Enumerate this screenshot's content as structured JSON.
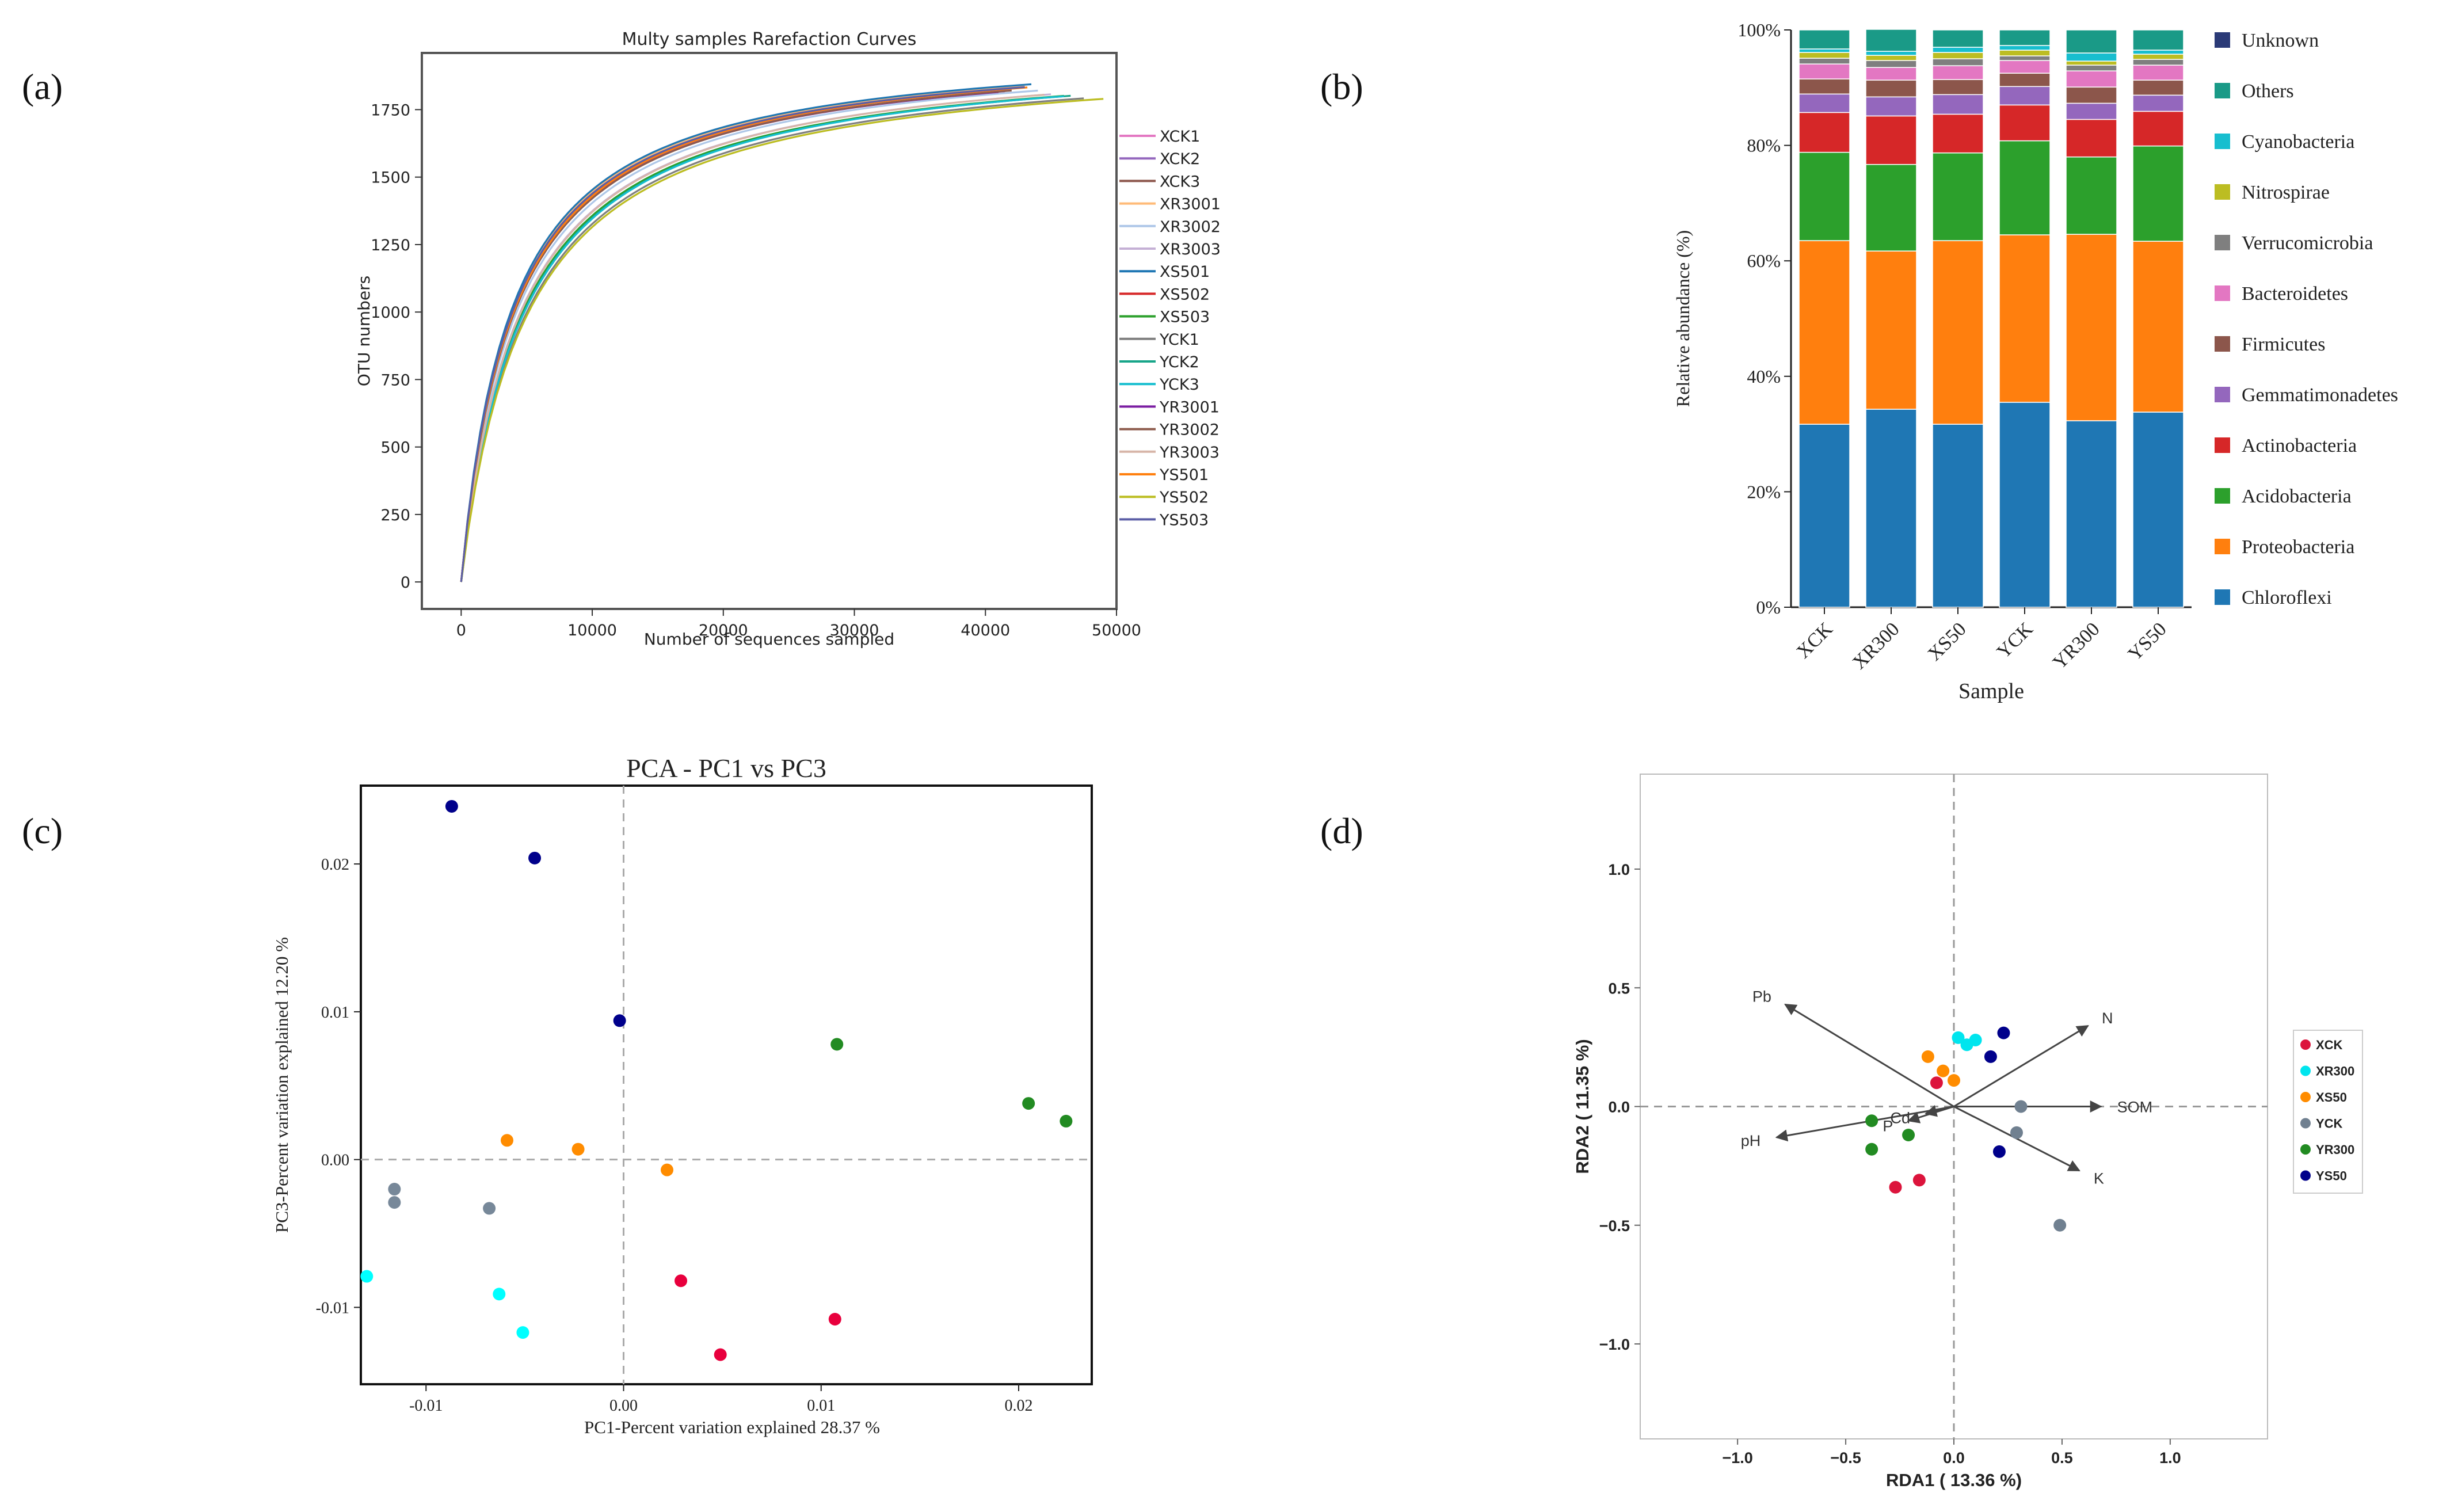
{
  "panel_labels": [
    "(a)",
    "(b)",
    "(c)",
    "(d)"
  ],
  "chart_data": [
    {
      "panel": "a",
      "type": "line",
      "title": "Multy samples Rarefaction Curves",
      "xlabel": "Number of sequences sampled",
      "ylabel": "OTU numbers",
      "xlim": [
        -3000,
        50000
      ],
      "ylim": [
        -100,
        1960
      ],
      "xticks": [
        0,
        10000,
        20000,
        30000,
        40000,
        50000
      ],
      "yticks": [
        0,
        250,
        500,
        750,
        1000,
        1250,
        1500,
        1750
      ],
      "grid": false,
      "legend": "right",
      "series": [
        {
          "name": "XCK1",
          "color": "#e377c2",
          "max_x": 42000,
          "plateau": 1840,
          "halfsat": 3900
        },
        {
          "name": "XCK2",
          "color": "#9467bd",
          "max_x": 41500,
          "plateau": 1835,
          "halfsat": 3950
        },
        {
          "name": "XCK3",
          "color": "#8c564b",
          "max_x": 42500,
          "plateau": 1842,
          "halfsat": 3880
        },
        {
          "name": "XR3001",
          "color": "#ffbb78",
          "max_x": 43000,
          "plateau": 1846,
          "halfsat": 3850
        },
        {
          "name": "XR3002",
          "color": "#aec7e8",
          "max_x": 44000,
          "plateau": 1838,
          "halfsat": 4200
        },
        {
          "name": "XR3003",
          "color": "#c5b0d5",
          "max_x": 45000,
          "plateau": 1830,
          "halfsat": 4450
        },
        {
          "name": "XS501",
          "color": "#1f77b4",
          "max_x": 43500,
          "plateau": 1848,
          "halfsat": 3800
        },
        {
          "name": "XS502",
          "color": "#d62728",
          "max_x": 42000,
          "plateau": 1844,
          "halfsat": 3950
        },
        {
          "name": "XS503",
          "color": "#2ca02c",
          "max_x": 46000,
          "plateau": 1826,
          "halfsat": 4600
        },
        {
          "name": "YCK1",
          "color": "#7f7f7f",
          "max_x": 47500,
          "plateau": 1822,
          "halfsat": 4900
        },
        {
          "name": "YCK2",
          "color": "#17a589",
          "max_x": 46500,
          "plateau": 1828,
          "halfsat": 4700
        },
        {
          "name": "YCK3",
          "color": "#17becf",
          "max_x": 46000,
          "plateau": 1830,
          "halfsat": 4750
        },
        {
          "name": "YR3001",
          "color": "#7b1fa2",
          "max_x": 41000,
          "plateau": 1836,
          "halfsat": 4000
        },
        {
          "name": "YR3002",
          "color": "#8d5b4c",
          "max_x": 42000,
          "plateau": 1840,
          "halfsat": 4050
        },
        {
          "name": "YR3003",
          "color": "#d7b5a8",
          "max_x": 44500,
          "plateau": 1832,
          "halfsat": 4500
        },
        {
          "name": "YS501",
          "color": "#ff7f0e",
          "max_x": 43200,
          "plateau": 1845,
          "halfsat": 4000
        },
        {
          "name": "YS502",
          "color": "#bcbd22",
          "max_x": 49000,
          "plateau": 1818,
          "halfsat": 5000
        },
        {
          "name": "YS503",
          "color": "#5b5ea6",
          "max_x": 43000,
          "plateau": 1843,
          "halfsat": 3900
        }
      ]
    },
    {
      "panel": "b",
      "type": "bar",
      "stacked": true,
      "title": "",
      "xlabel": "Sample",
      "ylabel": "Relative abundance (%)",
      "ylim": [
        0,
        100
      ],
      "yticks": [
        "0%",
        "20%",
        "40%",
        "60%",
        "80%",
        "100%"
      ],
      "categories": [
        "XCK",
        "XR300",
        "XS50",
        "YCK",
        "YR300",
        "YS50"
      ],
      "legend": "right",
      "legend_order": [
        "Unknown",
        "Others",
        "Cyanobacteria",
        "Nitrospirae",
        "Verrucomicrobia",
        "Bacteroidetes",
        "Firmicutes",
        "Gemmatimonadetes",
        "Actinobacteria",
        "Acidobacteria",
        "Proteobacteria",
        "Chloroflexi"
      ],
      "series": [
        {
          "name": "Chloroflexi",
          "color": "#1f77b4",
          "values": [
            31.7,
            34.3,
            31.7,
            35.5,
            32.3,
            33.8
          ]
        },
        {
          "name": "Proteobacteria",
          "color": "#ff7f0e",
          "values": [
            31.8,
            27.4,
            31.8,
            29.0,
            32.3,
            29.6
          ]
        },
        {
          "name": "Acidobacteria",
          "color": "#2ca02c",
          "values": [
            15.3,
            15.0,
            15.2,
            16.3,
            13.4,
            16.5
          ]
        },
        {
          "name": "Actinobacteria",
          "color": "#d62728",
          "values": [
            6.9,
            8.4,
            6.7,
            6.2,
            6.5,
            6.0
          ]
        },
        {
          "name": "Gemmatimonadetes",
          "color": "#9467bd",
          "values": [
            3.2,
            3.3,
            3.4,
            3.2,
            2.8,
            2.8
          ]
        },
        {
          "name": "Firmicutes",
          "color": "#8c564b",
          "values": [
            2.6,
            2.9,
            2.6,
            2.3,
            2.8,
            2.6
          ]
        },
        {
          "name": "Bacteroidetes",
          "color": "#e377c2",
          "values": [
            2.6,
            2.2,
            2.4,
            2.2,
            2.8,
            2.6
          ]
        },
        {
          "name": "Verrucomicrobia",
          "color": "#7f7f7f",
          "values": [
            1.0,
            1.2,
            1.2,
            0.8,
            1.0,
            1.0
          ]
        },
        {
          "name": "Nitrospirae",
          "color": "#bcbd22",
          "values": [
            1.0,
            0.9,
            1.1,
            1.0,
            0.7,
            0.9
          ]
        },
        {
          "name": "Cyanobacteria",
          "color": "#17becf",
          "values": [
            0.6,
            0.7,
            0.9,
            0.8,
            1.4,
            0.7
          ]
        },
        {
          "name": "Others",
          "color": "#1a9a87",
          "values": [
            3.3,
            3.8,
            3.0,
            2.7,
            4.0,
            3.5
          ]
        },
        {
          "name": "Unknown",
          "color": "#2b3a77",
          "values": [
            0.0,
            0.0,
            0.0,
            0.0,
            0.0,
            0.0
          ]
        }
      ]
    },
    {
      "panel": "c",
      "type": "scatter",
      "title": "PCA - PC1 vs PC3",
      "xlabel": "PC1-Percent variation explained 28.37 %",
      "ylabel": "PC3-Percent variation explained 12.20 %",
      "xlim": [
        -0.0133,
        0.0237
      ],
      "ylim": [
        -0.0152,
        0.0253
      ],
      "xticks": [
        -0.01,
        0.0,
        0.01,
        0.02
      ],
      "xtick_labels": [
        "-0.01",
        "0.00",
        "0.01",
        "0.02"
      ],
      "yticks": [
        -0.01,
        0.0,
        0.01,
        0.02
      ],
      "ytick_labels": [
        "-0.01",
        "0.00",
        "0.01",
        "0.02"
      ],
      "reference_lines": {
        "x": 0,
        "y": 0
      },
      "grid": false,
      "series": [
        {
          "color": "#e8003d",
          "points": [
            [
              0.0029,
              -0.0082
            ],
            [
              0.0049,
              -0.0132
            ],
            [
              0.0107,
              -0.0108
            ]
          ]
        },
        {
          "color": "#00ffff",
          "points": [
            [
              -0.013,
              -0.0079
            ],
            [
              -0.0063,
              -0.0091
            ],
            [
              -0.0051,
              -0.0117
            ]
          ]
        },
        {
          "color": "#ff8c00",
          "points": [
            [
              -0.0059,
              0.0013
            ],
            [
              -0.0023,
              0.0007
            ],
            [
              0.0022,
              -0.0007
            ]
          ]
        },
        {
          "color": "#778899",
          "points": [
            [
              -0.0116,
              -0.002
            ],
            [
              -0.0116,
              -0.0029
            ],
            [
              -0.0068,
              -0.0033
            ]
          ]
        },
        {
          "color": "#228b22",
          "points": [
            [
              0.0108,
              0.0078
            ],
            [
              0.0205,
              0.0038
            ],
            [
              0.0224,
              0.0026
            ]
          ]
        },
        {
          "color": "#00008b",
          "points": [
            [
              -0.0087,
              0.0239
            ],
            [
              -0.0045,
              0.0204
            ],
            [
              -0.0002,
              0.0094
            ]
          ]
        }
      ]
    },
    {
      "panel": "d",
      "type": "scatter",
      "title": "",
      "xlabel": "RDA1 ( 13.36 %)",
      "ylabel": "RDA2 ( 11.35 %)",
      "xlim": [
        -1.45,
        1.45
      ],
      "ylim": [
        -1.4,
        1.4
      ],
      "xticks": [
        -1.0,
        -0.5,
        0.0,
        0.5,
        1.0
      ],
      "xtick_labels": [
        "−1.0",
        "−0.5",
        "0.0",
        "0.5",
        "1.0"
      ],
      "yticks": [
        -1.0,
        -0.5,
        0.0,
        0.5,
        1.0
      ],
      "ytick_labels": [
        "−1.0",
        "−0.5",
        "0.0",
        "0.5",
        "1.0"
      ],
      "reference_lines": {
        "x": 0,
        "y": 0
      },
      "grid": false,
      "legend": "right",
      "series": [
        {
          "name": "XCK",
          "color": "#dc143c",
          "points": [
            [
              -0.27,
              -0.34
            ],
            [
              -0.16,
              -0.31
            ],
            [
              -0.08,
              0.1
            ]
          ]
        },
        {
          "name": "XR300",
          "color": "#00e5ee",
          "points": [
            [
              0.06,
              0.26
            ],
            [
              0.1,
              0.28
            ],
            [
              0.02,
              0.29
            ]
          ]
        },
        {
          "name": "XS50",
          "color": "#ff8c00",
          "points": [
            [
              -0.12,
              0.21
            ],
            [
              -0.05,
              0.15
            ],
            [
              0.0,
              0.11
            ]
          ]
        },
        {
          "name": "YCK",
          "color": "#708090",
          "points": [
            [
              0.31,
              0.0
            ],
            [
              0.29,
              -0.11
            ],
            [
              0.49,
              -0.5
            ]
          ]
        },
        {
          "name": "YR300",
          "color": "#228b22",
          "points": [
            [
              -0.38,
              -0.06
            ],
            [
              -0.38,
              -0.18
            ],
            [
              -0.21,
              -0.12
            ]
          ]
        },
        {
          "name": "YS50",
          "color": "#00008b",
          "points": [
            [
              0.23,
              0.31
            ],
            [
              0.17,
              0.21
            ],
            [
              0.21,
              -0.19
            ]
          ]
        }
      ],
      "arrows": [
        {
          "label": "Pb",
          "x": -0.78,
          "y": 0.43
        },
        {
          "label": "N",
          "x": 0.62,
          "y": 0.34
        },
        {
          "label": "SOM",
          "x": 0.68,
          "y": 0.0
        },
        {
          "label": "pH",
          "x": -0.82,
          "y": -0.13
        },
        {
          "label": "K",
          "x": 0.58,
          "y": -0.27
        },
        {
          "label": "Cd",
          "x": -0.13,
          "y": -0.03
        },
        {
          "label": "P",
          "x": -0.21,
          "y": -0.06
        }
      ]
    }
  ]
}
